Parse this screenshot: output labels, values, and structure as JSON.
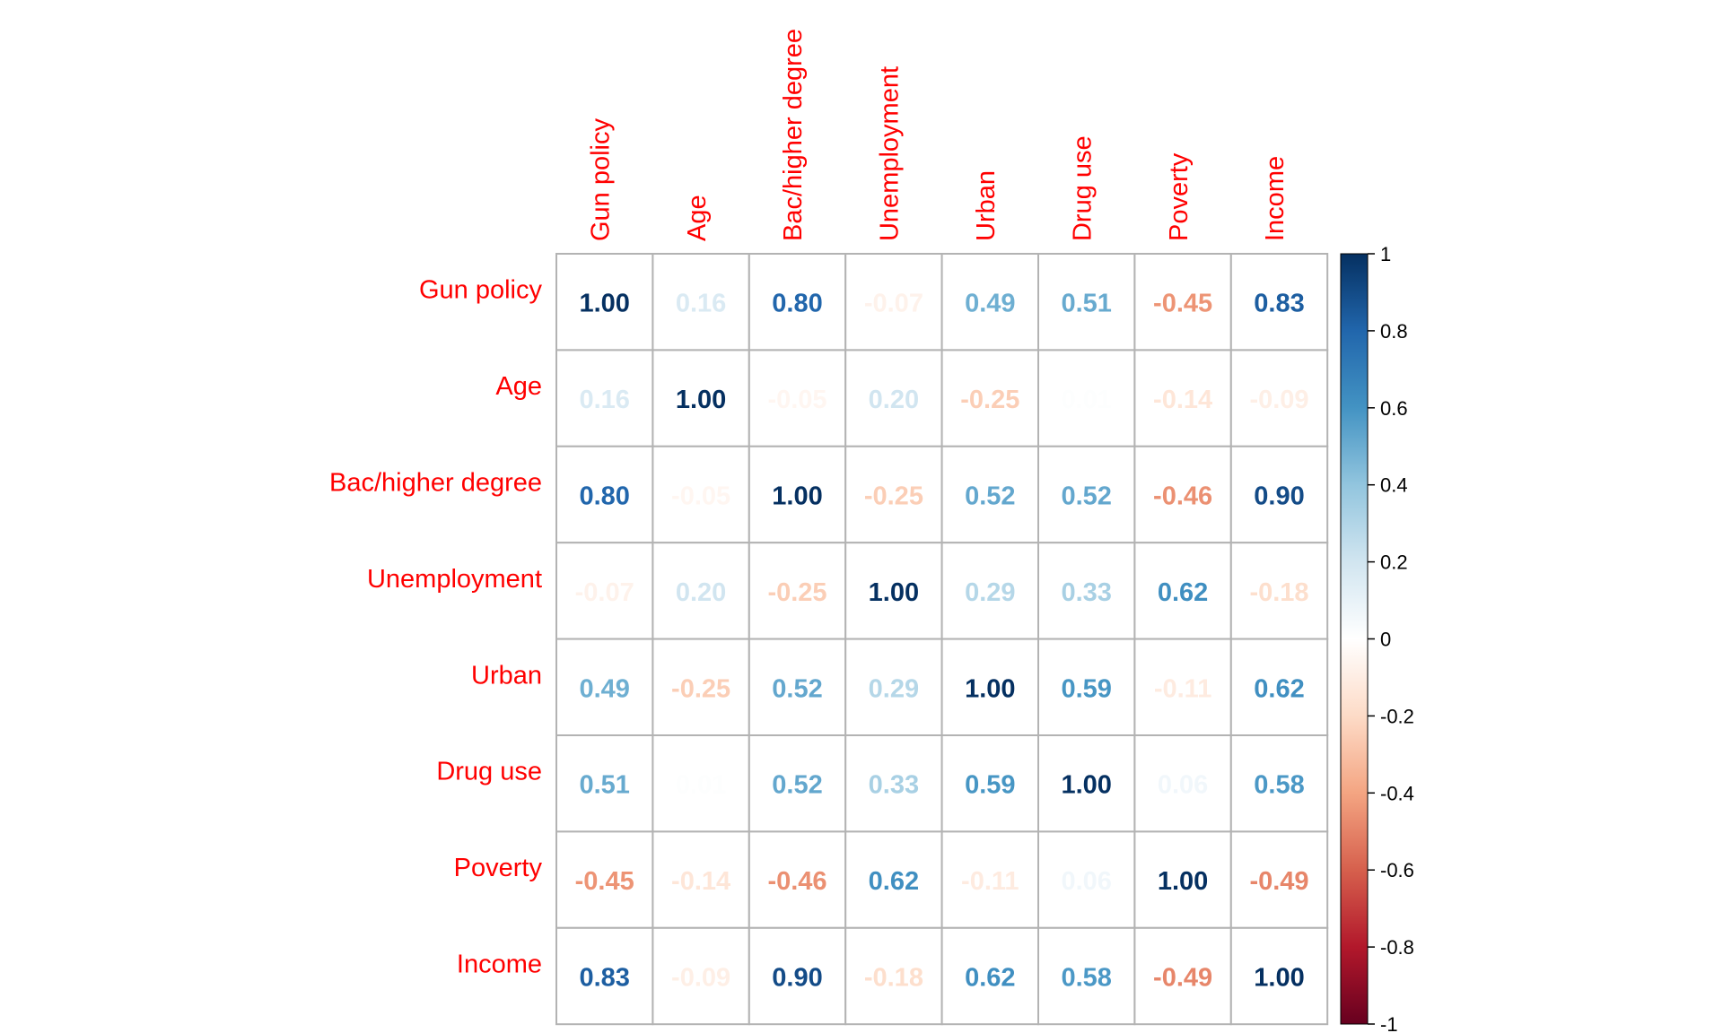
{
  "chart_data": {
    "type": "heatmap",
    "variables": [
      "Gun policy",
      "Age",
      "Bac/higher degree",
      "Unemployment",
      "Urban",
      "Drug use",
      "Poverty",
      "Income"
    ],
    "matrix": [
      [
        1.0,
        0.16,
        0.8,
        -0.07,
        0.49,
        0.51,
        -0.45,
        0.83
      ],
      [
        0.16,
        1.0,
        -0.05,
        0.2,
        -0.25,
        0.01,
        -0.14,
        -0.09
      ],
      [
        0.8,
        -0.05,
        1.0,
        -0.25,
        0.52,
        0.52,
        -0.46,
        0.9
      ],
      [
        -0.07,
        0.2,
        -0.25,
        1.0,
        0.29,
        0.33,
        0.62,
        -0.18
      ],
      [
        0.49,
        -0.25,
        0.52,
        0.29,
        1.0,
        0.59,
        -0.11,
        0.62
      ],
      [
        0.51,
        0.01,
        0.52,
        0.33,
        0.59,
        1.0,
        0.06,
        0.58
      ],
      [
        -0.45,
        -0.14,
        -0.46,
        0.62,
        -0.11,
        0.06,
        1.0,
        -0.49
      ],
      [
        0.83,
        -0.09,
        0.9,
        -0.18,
        0.62,
        0.58,
        -0.49,
        1.0
      ]
    ],
    "color_scale": {
      "range": [
        -1,
        1
      ],
      "ticks": [
        "1",
        "0.8",
        "0.6",
        "0.4",
        "0.2",
        "0",
        "-0.2",
        "-0.4",
        "-0.6",
        "-0.8",
        "-1"
      ]
    },
    "label_color": "#ff0000",
    "grid": true
  }
}
